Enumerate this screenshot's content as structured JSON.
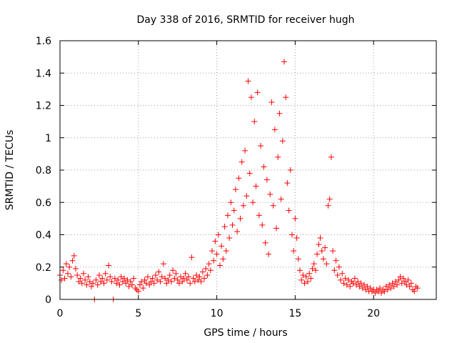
{
  "chart_data": {
    "type": "scatter",
    "title": "Day 338 of 2016, SRMTID for receiver hugh",
    "xlabel": "GPS time / hours",
    "ylabel": "SRMTID / TECUs",
    "xlim": [
      0,
      24
    ],
    "ylim": [
      0,
      1.6
    ],
    "xticks": [
      0,
      5,
      10,
      15,
      20
    ],
    "xtick_labels": [
      "0",
      "5",
      "10",
      "15",
      "20"
    ],
    "yticks": [
      0,
      0.2,
      0.4,
      0.6,
      0.8,
      1.0,
      1.2,
      1.4,
      1.6
    ],
    "ytick_labels": [
      "0",
      "0.2",
      "0.4",
      "0.6",
      "0.8",
      "1",
      "1.2",
      "1.4",
      "1.6"
    ],
    "grid": true,
    "marker": "+",
    "color": "#ff0000",
    "series": [
      {
        "name": "SRMTID",
        "points": [
          [
            0.0,
            0.15
          ],
          [
            0.1,
            0.12
          ],
          [
            0.2,
            0.18
          ],
          [
            0.3,
            0.13
          ],
          [
            0.4,
            0.22
          ],
          [
            0.5,
            0.16
          ],
          [
            0.6,
            0.2
          ],
          [
            0.7,
            0.14
          ],
          [
            0.8,
            0.24
          ],
          [
            0.9,
            0.27
          ],
          [
            1.0,
            0.19
          ],
          [
            1.1,
            0.15
          ],
          [
            1.2,
            0.11
          ],
          [
            1.3,
            0.13
          ],
          [
            1.4,
            0.1
          ],
          [
            1.5,
            0.16
          ],
          [
            1.6,
            0.12
          ],
          [
            1.7,
            0.09
          ],
          [
            1.8,
            0.14
          ],
          [
            1.9,
            0.11
          ],
          [
            2.0,
            0.08
          ],
          [
            2.1,
            0.1
          ],
          [
            2.2,
            0.0
          ],
          [
            2.3,
            0.12
          ],
          [
            2.4,
            0.09
          ],
          [
            2.5,
            0.15
          ],
          [
            2.6,
            0.11
          ],
          [
            2.7,
            0.13
          ],
          [
            2.8,
            0.1
          ],
          [
            2.9,
            0.16
          ],
          [
            3.0,
            0.12
          ],
          [
            3.1,
            0.21
          ],
          [
            3.2,
            0.14
          ],
          [
            3.3,
            0.11
          ],
          [
            3.4,
            0.0
          ],
          [
            3.5,
            0.13
          ],
          [
            3.6,
            0.1
          ],
          [
            3.7,
            0.12
          ],
          [
            3.8,
            0.09
          ],
          [
            3.9,
            0.14
          ],
          [
            4.0,
            0.11
          ],
          [
            4.1,
            0.13
          ],
          [
            4.2,
            0.1
          ],
          [
            4.3,
            0.12
          ],
          [
            4.4,
            0.08
          ],
          [
            4.5,
            0.11
          ],
          [
            4.6,
            0.09
          ],
          [
            4.7,
            0.13
          ],
          [
            4.8,
            0.07
          ],
          [
            4.9,
            0.06
          ],
          [
            5.0,
            0.05
          ],
          [
            5.1,
            0.09
          ],
          [
            5.2,
            0.11
          ],
          [
            5.3,
            0.07
          ],
          [
            5.4,
            0.12
          ],
          [
            5.5,
            0.1
          ],
          [
            5.6,
            0.14
          ],
          [
            5.7,
            0.09
          ],
          [
            5.8,
            0.11
          ],
          [
            5.9,
            0.13
          ],
          [
            6.0,
            0.1
          ],
          [
            6.1,
            0.15
          ],
          [
            6.2,
            0.12
          ],
          [
            6.3,
            0.17
          ],
          [
            6.4,
            0.11
          ],
          [
            6.5,
            0.14
          ],
          [
            6.6,
            0.22
          ],
          [
            6.7,
            0.13
          ],
          [
            6.8,
            0.1
          ],
          [
            6.9,
            0.12
          ],
          [
            7.0,
            0.15
          ],
          [
            7.1,
            0.11
          ],
          [
            7.2,
            0.18
          ],
          [
            7.3,
            0.13
          ],
          [
            7.4,
            0.16
          ],
          [
            7.5,
            0.12
          ],
          [
            7.6,
            0.1
          ],
          [
            7.7,
            0.14
          ],
          [
            7.8,
            0.11
          ],
          [
            7.9,
            0.13
          ],
          [
            8.0,
            0.16
          ],
          [
            8.1,
            0.12
          ],
          [
            8.2,
            0.14
          ],
          [
            8.3,
            0.1
          ],
          [
            8.4,
            0.26
          ],
          [
            8.5,
            0.13
          ],
          [
            8.6,
            0.11
          ],
          [
            8.7,
            0.15
          ],
          [
            8.8,
            0.12
          ],
          [
            8.9,
            0.14
          ],
          [
            9.0,
            0.11
          ],
          [
            9.1,
            0.17
          ],
          [
            9.2,
            0.13
          ],
          [
            9.3,
            0.19
          ],
          [
            9.4,
            0.15
          ],
          [
            9.5,
            0.22
          ],
          [
            9.6,
            0.18
          ],
          [
            9.7,
            0.3
          ],
          [
            9.8,
            0.24
          ],
          [
            9.9,
            0.36
          ],
          [
            10.0,
            0.28
          ],
          [
            10.1,
            0.4
          ],
          [
            10.2,
            0.21
          ],
          [
            10.3,
            0.33
          ],
          [
            10.4,
            0.25
          ],
          [
            10.5,
            0.45
          ],
          [
            10.6,
            0.3
          ],
          [
            10.7,
            0.52
          ],
          [
            10.8,
            0.38
          ],
          [
            10.9,
            0.6
          ],
          [
            11.0,
            0.46
          ],
          [
            11.1,
            0.55
          ],
          [
            11.2,
            0.68
          ],
          [
            11.3,
            0.42
          ],
          [
            11.4,
            0.75
          ],
          [
            11.5,
            0.5
          ],
          [
            11.6,
            0.85
          ],
          [
            11.7,
            0.58
          ],
          [
            11.8,
            0.92
          ],
          [
            11.9,
            0.64
          ],
          [
            12.0,
            1.35
          ],
          [
            12.1,
            0.78
          ],
          [
            12.2,
            1.25
          ],
          [
            12.3,
            0.6
          ],
          [
            12.4,
            1.1
          ],
          [
            12.5,
            0.7
          ],
          [
            12.6,
            1.28
          ],
          [
            12.7,
            0.52
          ],
          [
            12.8,
            0.95
          ],
          [
            12.9,
            0.46
          ],
          [
            13.0,
            0.82
          ],
          [
            13.1,
            0.35
          ],
          [
            13.2,
            0.74
          ],
          [
            13.3,
            0.28
          ],
          [
            13.4,
            0.65
          ],
          [
            13.5,
            1.22
          ],
          [
            13.6,
            0.58
          ],
          [
            13.7,
            1.05
          ],
          [
            13.8,
            0.44
          ],
          [
            13.9,
            0.88
          ],
          [
            14.0,
            1.15
          ],
          [
            14.1,
            0.62
          ],
          [
            14.2,
            0.98
          ],
          [
            14.3,
            1.47
          ],
          [
            14.4,
            1.25
          ],
          [
            14.5,
            0.72
          ],
          [
            14.6,
            0.55
          ],
          [
            14.7,
            0.8
          ],
          [
            14.8,
            0.4
          ],
          [
            14.9,
            0.3
          ],
          [
            15.0,
            0.5
          ],
          [
            15.1,
            0.38
          ],
          [
            15.2,
            0.25
          ],
          [
            15.3,
            0.18
          ],
          [
            15.4,
            0.12
          ],
          [
            15.5,
            0.15
          ],
          [
            15.6,
            0.1
          ],
          [
            15.7,
            0.14
          ],
          [
            15.8,
            0.11
          ],
          [
            15.9,
            0.16
          ],
          [
            16.0,
            0.13
          ],
          [
            16.1,
            0.19
          ],
          [
            16.2,
            0.22
          ],
          [
            16.3,
            0.18
          ],
          [
            16.4,
            0.28
          ],
          [
            16.5,
            0.34
          ],
          [
            16.6,
            0.38
          ],
          [
            16.7,
            0.3
          ],
          [
            16.8,
            0.25
          ],
          [
            16.9,
            0.32
          ],
          [
            17.0,
            0.22
          ],
          [
            17.1,
            0.58
          ],
          [
            17.2,
            0.62
          ],
          [
            17.3,
            0.88
          ],
          [
            17.4,
            0.3
          ],
          [
            17.5,
            0.18
          ],
          [
            17.6,
            0.24
          ],
          [
            17.7,
            0.15
          ],
          [
            17.8,
            0.2
          ],
          [
            17.9,
            0.12
          ],
          [
            18.0,
            0.16
          ],
          [
            18.1,
            0.1
          ],
          [
            18.2,
            0.13
          ],
          [
            18.3,
            0.09
          ],
          [
            18.4,
            0.12
          ],
          [
            18.5,
            0.08
          ],
          [
            18.6,
            0.11
          ],
          [
            18.7,
            0.1
          ],
          [
            18.8,
            0.13
          ],
          [
            18.9,
            0.09
          ],
          [
            19.0,
            0.11
          ],
          [
            19.1,
            0.08
          ],
          [
            19.2,
            0.1
          ],
          [
            19.3,
            0.07
          ],
          [
            19.4,
            0.09
          ],
          [
            19.5,
            0.06
          ],
          [
            19.6,
            0.08
          ],
          [
            19.7,
            0.05
          ],
          [
            19.8,
            0.07
          ],
          [
            19.9,
            0.05
          ],
          [
            20.0,
            0.06
          ],
          [
            20.1,
            0.04
          ],
          [
            20.2,
            0.06
          ],
          [
            20.3,
            0.05
          ],
          [
            20.4,
            0.07
          ],
          [
            20.5,
            0.04
          ],
          [
            20.6,
            0.06
          ],
          [
            20.7,
            0.05
          ],
          [
            20.8,
            0.08
          ],
          [
            20.9,
            0.06
          ],
          [
            21.0,
            0.09
          ],
          [
            21.1,
            0.07
          ],
          [
            21.2,
            0.1
          ],
          [
            21.3,
            0.08
          ],
          [
            21.4,
            0.11
          ],
          [
            21.5,
            0.09
          ],
          [
            21.6,
            0.12
          ],
          [
            21.7,
            0.14
          ],
          [
            21.8,
            0.1
          ],
          [
            21.9,
            0.13
          ],
          [
            22.0,
            0.11
          ],
          [
            22.1,
            0.09
          ],
          [
            22.2,
            0.12
          ],
          [
            22.3,
            0.08
          ],
          [
            22.4,
            0.1
          ],
          [
            22.5,
            0.06
          ],
          [
            22.6,
            0.05
          ],
          [
            22.7,
            0.08
          ],
          [
            22.8,
            0.07
          ]
        ]
      }
    ]
  }
}
